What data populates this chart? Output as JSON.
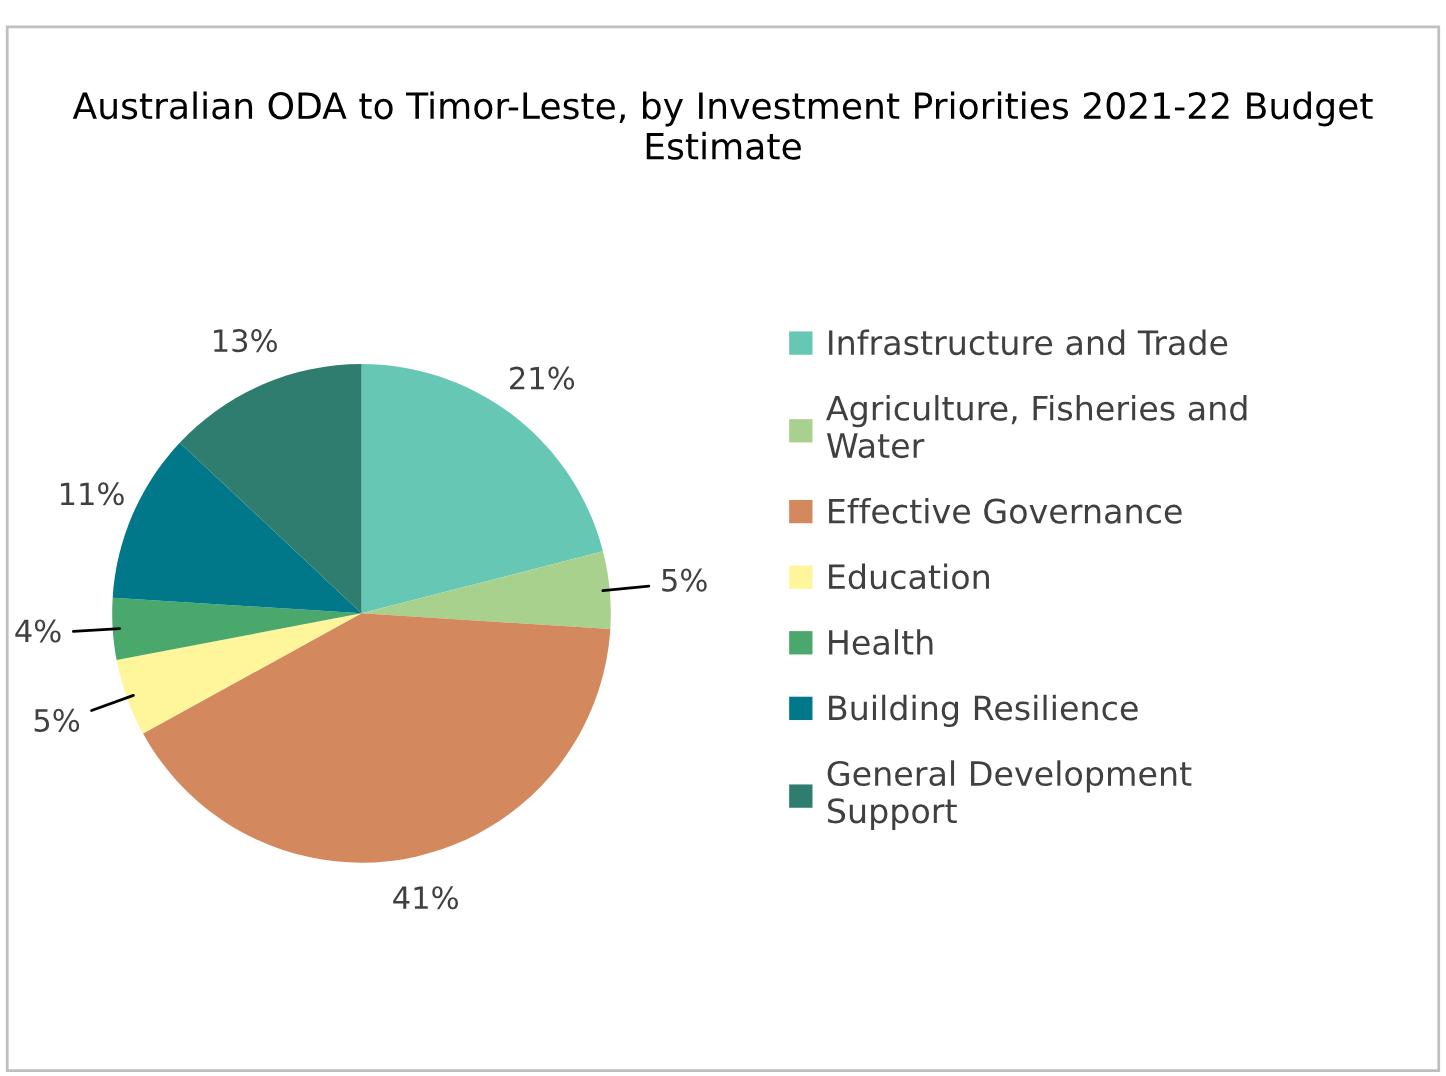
{
  "chart_data": {
    "type": "pie",
    "title": "Australian ODA to Timor-Leste, by Investment Priorities 2021-22 Budget Estimate",
    "categories": [
      "Infrastructure and Trade",
      "Agriculture, Fisheries and Water",
      "Effective Governance",
      "Education",
      "Health",
      "Building Resilience",
      "General Development Support"
    ],
    "values": [
      21,
      5,
      41,
      5,
      4,
      11,
      13
    ],
    "colors": [
      "#66c7b4",
      "#a9d18e",
      "#d4885e",
      "#fff59a",
      "#4aa86c",
      "#00788a",
      "#2e7d6e"
    ],
    "value_labels": [
      "21%",
      "5%",
      "41%",
      "5%",
      "4%",
      "11%",
      "13%"
    ],
    "legend": "right"
  }
}
